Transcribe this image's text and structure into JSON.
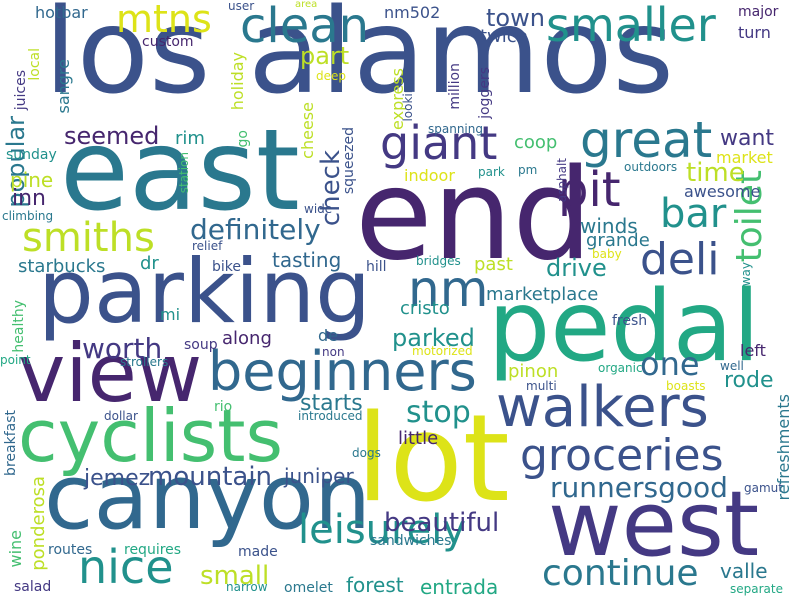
{
  "palette": {
    "background": "#ffffff",
    "dark_purple": "#46266e",
    "indigo": "#443983",
    "slate_blue": "#3b528b",
    "steel_blue": "#31688e",
    "teal_blue": "#2a788e",
    "teal": "#21918c",
    "sea_green": "#22a884",
    "green": "#44bf70",
    "light_green": "#7ad151",
    "lime": "#bddf26",
    "yellow": "#dde318"
  },
  "words": [
    {
      "text": "los alamos",
      "color": "#3b528b",
      "vertical": false
    },
    {
      "text": "east",
      "color": "#2a788e",
      "vertical": false
    },
    {
      "text": "end",
      "color": "#46266e",
      "vertical": false
    },
    {
      "text": "parking",
      "color": "#3b528b",
      "vertical": false
    },
    {
      "text": "pedal",
      "color": "#22a884",
      "vertical": false
    },
    {
      "text": "view",
      "color": "#46266e",
      "vertical": false
    },
    {
      "text": "lot",
      "color": "#dde318",
      "vertical": false
    },
    {
      "text": "cyclists",
      "color": "#44bf70",
      "vertical": false
    },
    {
      "text": "canyon",
      "color": "#31688e",
      "vertical": false
    },
    {
      "text": "west",
      "color": "#443983",
      "vertical": false
    },
    {
      "text": "walkers",
      "color": "#3b528b",
      "vertical": false
    },
    {
      "text": "beginners",
      "color": "#31688e",
      "vertical": false
    },
    {
      "text": "groceries",
      "color": "#3b528b",
      "vertical": false
    },
    {
      "text": "leisurely",
      "color": "#21918c",
      "vertical": false
    },
    {
      "text": "nice",
      "color": "#21918c",
      "vertical": false
    },
    {
      "text": "continue",
      "color": "#2a788e",
      "vertical": false
    },
    {
      "text": "giant",
      "color": "#443983",
      "vertical": false
    },
    {
      "text": "great",
      "color": "#2a788e",
      "vertical": false
    },
    {
      "text": "clean",
      "color": "#2a788e",
      "vertical": false
    },
    {
      "text": "smaller",
      "color": "#21918c",
      "vertical": false
    },
    {
      "text": "mtns",
      "color": "#dde318",
      "vertical": false
    },
    {
      "text": "smiths",
      "color": "#bddf26",
      "vertical": false
    },
    {
      "text": "pit",
      "color": "#46266e",
      "vertical": false
    },
    {
      "text": "bar",
      "color": "#21918c",
      "vertical": false
    },
    {
      "text": "deli",
      "color": "#3b528b",
      "vertical": false
    },
    {
      "text": "toilet",
      "color": "#44bf70",
      "vertical": true
    },
    {
      "text": "nm",
      "color": "#31688e",
      "vertical": false
    },
    {
      "text": "one",
      "color": "#31688e",
      "vertical": false
    },
    {
      "text": "definitely",
      "color": "#31688e",
      "vertical": false
    },
    {
      "text": "check",
      "color": "#3b528b",
      "vertical": true
    },
    {
      "text": "popular",
      "color": "#2a788e",
      "vertical": true
    },
    {
      "text": "seemed",
      "color": "#46266e",
      "vertical": false
    },
    {
      "text": "part",
      "color": "#bddf26",
      "vertical": false
    },
    {
      "text": "town",
      "color": "#3b528b",
      "vertical": false
    },
    {
      "text": "twice",
      "color": "#3b528b",
      "vertical": false
    },
    {
      "text": "time",
      "color": "#bddf26",
      "vertical": false
    },
    {
      "text": "want",
      "color": "#443983",
      "vertical": false
    },
    {
      "text": "drive",
      "color": "#21918c",
      "vertical": false
    },
    {
      "text": "worth",
      "color": "#443983",
      "vertical": false
    },
    {
      "text": "stop",
      "color": "#21918c",
      "vertical": false
    },
    {
      "text": "rode",
      "color": "#21918c",
      "vertical": false
    },
    {
      "text": "mountain",
      "color": "#3b528b",
      "vertical": false
    },
    {
      "text": "beautiful",
      "color": "#443983",
      "vertical": false
    },
    {
      "text": "runnersgood",
      "color": "#31688e",
      "vertical": false
    },
    {
      "text": "small",
      "color": "#bddf26",
      "vertical": false
    },
    {
      "text": "parked",
      "color": "#21918c",
      "vertical": false
    },
    {
      "text": "starts",
      "color": "#2a788e",
      "vertical": false
    },
    {
      "text": "inn",
      "color": "#46266e",
      "vertical": false
    },
    {
      "text": "pine",
      "color": "#bddf26",
      "vertical": false
    },
    {
      "text": "starbucks",
      "color": "#2a788e",
      "vertical": false
    },
    {
      "text": "tasting",
      "color": "#31688e",
      "vertical": false
    },
    {
      "text": "winds",
      "color": "#2a788e",
      "vertical": false
    },
    {
      "text": "grande",
      "color": "#2a788e",
      "vertical": false
    },
    {
      "text": "marketplace",
      "color": "#2a788e",
      "vertical": false
    },
    {
      "text": "cristo",
      "color": "#21918c",
      "vertical": false
    },
    {
      "text": "past",
      "color": "#bddf26",
      "vertical": false
    },
    {
      "text": "coop",
      "color": "#44bf70",
      "vertical": false
    },
    {
      "text": "market",
      "color": "#dde318",
      "vertical": false
    },
    {
      "text": "awesome",
      "color": "#3b528b",
      "vertical": false
    },
    {
      "text": "indoor",
      "color": "#dde318",
      "vertical": false
    },
    {
      "text": "along",
      "color": "#46266e",
      "vertical": false
    },
    {
      "text": "de",
      "color": "#31688e",
      "vertical": false
    },
    {
      "text": "pinon",
      "color": "#bddf26",
      "vertical": false
    },
    {
      "text": "little",
      "color": "#46266e",
      "vertical": false
    },
    {
      "text": "juniper",
      "color": "#3b528b",
      "vertical": false
    },
    {
      "text": "jemez",
      "color": "#3b528b",
      "vertical": false
    },
    {
      "text": "sandwiches",
      "color": "#2a788e",
      "vertical": false
    },
    {
      "text": "routes",
      "color": "#31688e",
      "vertical": false
    },
    {
      "text": "requires",
      "color": "#22a884",
      "vertical": false
    },
    {
      "text": "made",
      "color": "#3b528b",
      "vertical": false
    },
    {
      "text": "forest",
      "color": "#21918c",
      "vertical": false
    },
    {
      "text": "entrada",
      "color": "#22a884",
      "vertical": false
    },
    {
      "text": "omelet",
      "color": "#2a788e",
      "vertical": false
    },
    {
      "text": "narrow",
      "color": "#21918c",
      "vertical": false
    },
    {
      "text": "salad",
      "color": "#443983",
      "vertical": false
    },
    {
      "text": "valle",
      "color": "#2a788e",
      "vertical": false
    },
    {
      "text": "separate",
      "color": "#22a884",
      "vertical": false
    },
    {
      "text": "gamut",
      "color": "#3b528b",
      "vertical": false
    },
    {
      "text": "boasts",
      "color": "#dde318",
      "vertical": false
    },
    {
      "text": "well",
      "color": "#31688e",
      "vertical": false
    },
    {
      "text": "multi",
      "color": "#3b528b",
      "vertical": false
    },
    {
      "text": "organic",
      "color": "#22a884",
      "vertical": false
    },
    {
      "text": "left",
      "color": "#46266e",
      "vertical": false
    },
    {
      "text": "fresh",
      "color": "#3b528b",
      "vertical": false
    },
    {
      "text": "baby",
      "color": "#dde318",
      "vertical": false
    },
    {
      "text": "way",
      "color": "#21918c",
      "vertical": true
    },
    {
      "text": "refreshments",
      "color": "#2a788e",
      "vertical": true
    },
    {
      "text": "hotbar",
      "color": "#31688e",
      "vertical": false
    },
    {
      "text": "custom",
      "color": "#46266e",
      "vertical": false
    },
    {
      "text": "user",
      "color": "#3b528b",
      "vertical": false
    },
    {
      "text": "area",
      "color": "#bddf26",
      "vertical": false
    },
    {
      "text": "nm502",
      "color": "#3b528b",
      "vertical": false
    },
    {
      "text": "major",
      "color": "#46266e",
      "vertical": false
    },
    {
      "text": "turn",
      "color": "#443983",
      "vertical": false
    },
    {
      "text": "deep",
      "color": "#dde318",
      "vertical": false
    },
    {
      "text": "local",
      "color": "#bddf26",
      "vertical": true
    },
    {
      "text": "juices",
      "color": "#443983",
      "vertical": true
    },
    {
      "text": "sangre",
      "color": "#2a788e",
      "vertical": true
    },
    {
      "text": "holiday",
      "color": "#bddf26",
      "vertical": true
    },
    {
      "text": "express",
      "color": "#bddf26",
      "vertical": true
    },
    {
      "text": "million",
      "color": "#443983",
      "vertical": true
    },
    {
      "text": "joggers",
      "color": "#443983",
      "vertical": true
    },
    {
      "text": "looking",
      "color": "#3b528b",
      "vertical": true
    },
    {
      "text": "cheese",
      "color": "#bddf26",
      "vertical": true
    },
    {
      "text": "go",
      "color": "#44bf70",
      "vertical": true
    },
    {
      "text": "rim",
      "color": "#21918c",
      "vertical": false
    },
    {
      "text": "spanning",
      "color": "#31688e",
      "vertical": false
    },
    {
      "text": "pm",
      "color": "#2a788e",
      "vertical": false
    },
    {
      "text": "outdoors",
      "color": "#2a788e",
      "vertical": false
    },
    {
      "text": "sunday",
      "color": "#21918c",
      "vertical": false
    },
    {
      "text": "station",
      "color": "#44bf70",
      "vertical": true
    },
    {
      "text": "squeezed",
      "color": "#3b528b",
      "vertical": true
    },
    {
      "text": "asphalt",
      "color": "#443983",
      "vertical": true
    },
    {
      "text": "park",
      "color": "#21918c",
      "vertical": false
    },
    {
      "text": "climbing",
      "color": "#2a788e",
      "vertical": false
    },
    {
      "text": "wide",
      "color": "#3b528b",
      "vertical": false
    },
    {
      "text": "relief",
      "color": "#3b528b",
      "vertical": false
    },
    {
      "text": "dr",
      "color": "#21918c",
      "vertical": false
    },
    {
      "text": "hill",
      "color": "#3b528b",
      "vertical": false
    },
    {
      "text": "bridges",
      "color": "#21918c",
      "vertical": false
    },
    {
      "text": "bike",
      "color": "#3b528b",
      "vertical": false
    },
    {
      "text": "mi",
      "color": "#21918c",
      "vertical": false
    },
    {
      "text": "healthy",
      "color": "#44bf70",
      "vertical": true
    },
    {
      "text": "soup",
      "color": "#443983",
      "vertical": false
    },
    {
      "text": "non",
      "color": "#443983",
      "vertical": false
    },
    {
      "text": "point",
      "color": "#22a884",
      "vertical": false
    },
    {
      "text": "strollers",
      "color": "#2a788e",
      "vertical": false
    },
    {
      "text": "motorized",
      "color": "#dde318",
      "vertical": false
    },
    {
      "text": "rio",
      "color": "#44bf70",
      "vertical": false
    },
    {
      "text": "dollar",
      "color": "#3b528b",
      "vertical": false
    },
    {
      "text": "introduced",
      "color": "#2a788e",
      "vertical": false
    },
    {
      "text": "breakfast",
      "color": "#31688e",
      "vertical": true
    },
    {
      "text": "dogs",
      "color": "#2a788e",
      "vertical": false
    },
    {
      "text": "ponderosa",
      "color": "#bddf26",
      "vertical": true
    },
    {
      "text": "wine",
      "color": "#44bf70",
      "vertical": true
    }
  ]
}
